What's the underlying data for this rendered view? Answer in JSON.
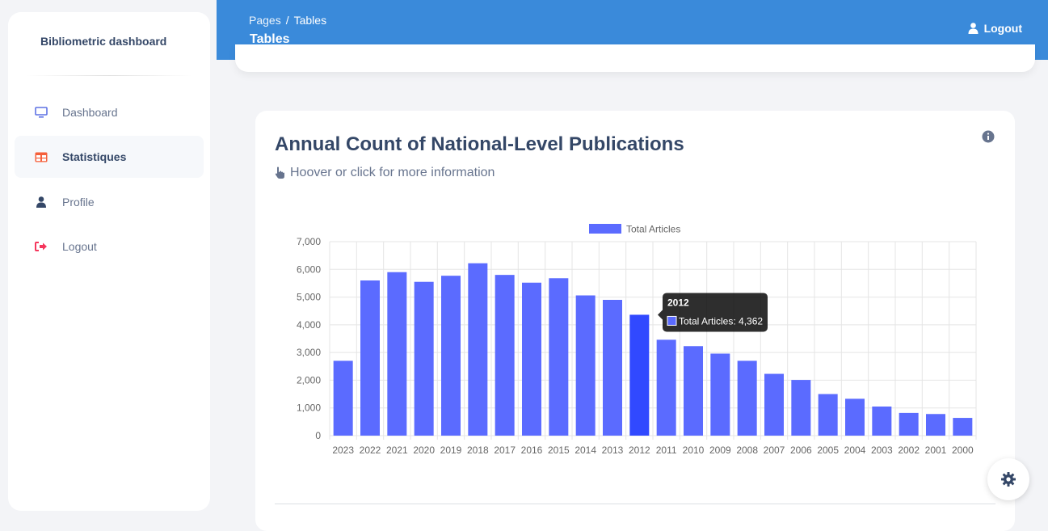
{
  "sidebar": {
    "brand": "Bibliometric dashboard",
    "items": [
      {
        "label": "Dashboard",
        "icon": "monitor-icon"
      },
      {
        "label": "Statistiques",
        "icon": "table-icon"
      },
      {
        "label": "Profile",
        "icon": "user-icon"
      },
      {
        "label": "Logout",
        "icon": "sign-out-icon"
      }
    ],
    "active_index": 1
  },
  "header": {
    "crumb_root": "Pages",
    "crumb_separator": "/",
    "crumb_current": "Tables",
    "title": "Tables",
    "logout_label": "Logout"
  },
  "card": {
    "title": "Annual Count of National-Level Publications",
    "hint": "Hoover or click for more information"
  },
  "colors": {
    "header_bg": "#3a8ada",
    "bar": "#5b6bff",
    "bar_active": "#3149ff",
    "dashboard_icon": "#5e72e4",
    "statistiques_icon": "#f5603b",
    "profile_icon": "#344767",
    "logout_icon": "#f5365c"
  },
  "chart_data": {
    "type": "bar",
    "categories": [
      "2023",
      "2022",
      "2021",
      "2020",
      "2019",
      "2018",
      "2017",
      "2016",
      "2015",
      "2014",
      "2013",
      "2012",
      "2011",
      "2010",
      "2009",
      "2008",
      "2007",
      "2006",
      "2005",
      "2004",
      "2003",
      "2002",
      "2001",
      "2000"
    ],
    "series": [
      {
        "name": "Total Articles",
        "values": [
          2700,
          5600,
          5900,
          5550,
          5770,
          6220,
          5800,
          5520,
          5680,
          5060,
          4900,
          4362,
          3460,
          3230,
          2960,
          2700,
          2230,
          2010,
          1500,
          1330,
          1050,
          820,
          780,
          640
        ]
      }
    ],
    "ylim": [
      0,
      7000
    ],
    "yticks": [
      "0",
      "1,000",
      "2,000",
      "3,000",
      "4,000",
      "5,000",
      "6,000",
      "7,000"
    ],
    "grid": true,
    "legend": "top-center",
    "tooltip": {
      "index": 11,
      "title": "2012",
      "label": "Total Articles: 4,362"
    }
  }
}
